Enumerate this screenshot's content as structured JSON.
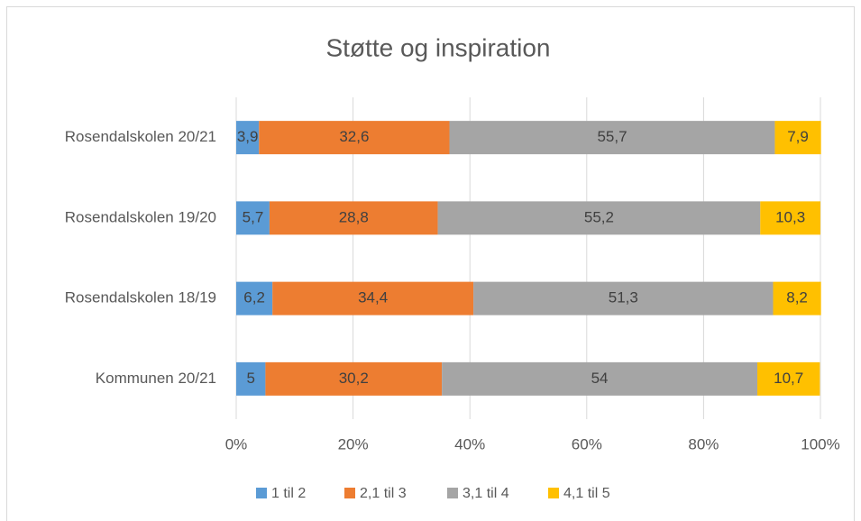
{
  "chart_data": {
    "type": "stacked_barh",
    "title": "Støtte og inspiration",
    "categories": [
      "Rosendalskolen 20/21",
      "Rosendalskolen 19/20",
      "Rosendalskolen 18/19",
      "Kommunen 20/21"
    ],
    "series": [
      {
        "name": "1 til 2",
        "color": "#5b9bd5",
        "values": [
          3.9,
          5.7,
          6.2,
          5
        ],
        "value_labels": [
          "3,9",
          "5,7",
          "6,2",
          "5"
        ]
      },
      {
        "name": "2,1 til 3",
        "color": "#ed7d31",
        "values": [
          32.6,
          28.8,
          34.4,
          30.2
        ],
        "value_labels": [
          "32,6",
          "28,8",
          "34,4",
          "30,2"
        ]
      },
      {
        "name": "3,1 til 4",
        "color": "#a5a5a5",
        "values": [
          55.7,
          55.2,
          51.3,
          54
        ],
        "value_labels": [
          "55,7",
          "55,2",
          "51,3",
          "54"
        ]
      },
      {
        "name": "4,1 til 5",
        "color": "#ffc000",
        "values": [
          7.9,
          10.3,
          8.2,
          10.7
        ],
        "value_labels": [
          "7,9",
          "10,3",
          "8,2",
          "10,7"
        ]
      }
    ],
    "xlim": [
      0,
      100
    ],
    "xticks": [
      {
        "value": 0,
        "label": "0%"
      },
      {
        "value": 20,
        "label": "20%"
      },
      {
        "value": 40,
        "label": "40%"
      },
      {
        "value": 60,
        "label": "60%"
      },
      {
        "value": 80,
        "label": "80%"
      },
      {
        "value": 100,
        "label": "100%"
      }
    ],
    "grid": true,
    "legend": "bottom"
  }
}
